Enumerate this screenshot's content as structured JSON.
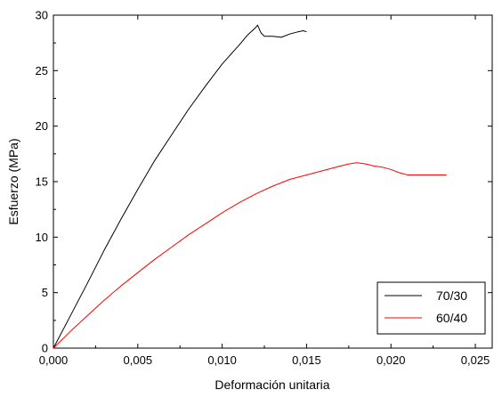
{
  "chart_data": {
    "type": "line",
    "title": "",
    "xlabel": "Deformación unitaria",
    "ylabel": "Esfuerzo (MPa)",
    "xlim": [
      0,
      0.026
    ],
    "ylim": [
      0,
      30
    ],
    "x_ticks": [
      0,
      0.005,
      0.01,
      0.015,
      0.02,
      0.025
    ],
    "x_tick_labels": [
      "0,000",
      "0,005",
      "0,010",
      "0,015",
      "0,020",
      "0,025"
    ],
    "y_ticks": [
      0,
      5,
      10,
      15,
      20,
      25,
      30
    ],
    "y_tick_labels": [
      "0",
      "5",
      "10",
      "15",
      "20",
      "25",
      "30"
    ],
    "grid": false,
    "legend_position": "bottom-right",
    "series": [
      {
        "name": "70/30",
        "color": "#000000",
        "points": [
          [
            0,
            0
          ],
          [
            0.001,
            2.9
          ],
          [
            0.002,
            5.8
          ],
          [
            0.003,
            8.8
          ],
          [
            0.004,
            11.6
          ],
          [
            0.005,
            14.3
          ],
          [
            0.006,
            16.9
          ],
          [
            0.007,
            19.2
          ],
          [
            0.008,
            21.5
          ],
          [
            0.009,
            23.6
          ],
          [
            0.01,
            25.6
          ],
          [
            0.011,
            27.3
          ],
          [
            0.0115,
            28.2
          ],
          [
            0.012,
            28.9
          ],
          [
            0.0121,
            29.1
          ],
          [
            0.0123,
            28.4
          ],
          [
            0.0125,
            28.1
          ],
          [
            0.013,
            28.1
          ],
          [
            0.0135,
            28.0
          ],
          [
            0.014,
            28.3
          ],
          [
            0.0145,
            28.5
          ],
          [
            0.0148,
            28.6
          ],
          [
            0.015,
            28.5
          ]
        ]
      },
      {
        "name": "60/40",
        "color": "#ff0000",
        "points": [
          [
            0,
            0
          ],
          [
            0.001,
            1.5
          ],
          [
            0.002,
            2.9
          ],
          [
            0.003,
            4.3
          ],
          [
            0.004,
            5.6
          ],
          [
            0.005,
            6.8
          ],
          [
            0.006,
            8.0
          ],
          [
            0.007,
            9.1
          ],
          [
            0.008,
            10.2
          ],
          [
            0.009,
            11.2
          ],
          [
            0.01,
            12.2
          ],
          [
            0.011,
            13.1
          ],
          [
            0.012,
            13.9
          ],
          [
            0.013,
            14.6
          ],
          [
            0.014,
            15.2
          ],
          [
            0.015,
            15.6
          ],
          [
            0.016,
            16.0
          ],
          [
            0.017,
            16.4
          ],
          [
            0.0175,
            16.6
          ],
          [
            0.018,
            16.7
          ],
          [
            0.0185,
            16.6
          ],
          [
            0.019,
            16.4
          ],
          [
            0.0195,
            16.3
          ],
          [
            0.02,
            16.1
          ],
          [
            0.0205,
            15.8
          ],
          [
            0.021,
            15.6
          ],
          [
            0.022,
            15.6
          ],
          [
            0.0233,
            15.6
          ]
        ]
      }
    ]
  }
}
